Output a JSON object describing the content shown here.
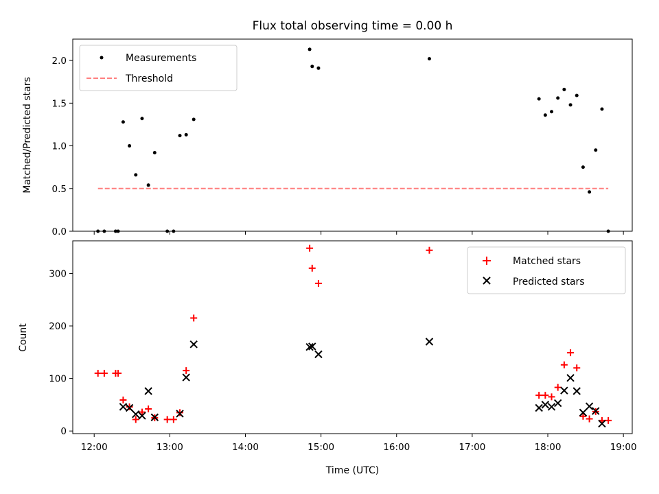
{
  "chart_data": [
    {
      "type": "scatter",
      "title": "Flux total observing time = 0.00 h",
      "xlabel": "",
      "ylabel": "Matched/Predicted stars",
      "ylim": [
        0,
        2.25
      ],
      "yticks": [
        "0.0",
        "0.5",
        "1.0",
        "1.5",
        "2.0"
      ],
      "ytick_values": [
        0,
        0.5,
        1.0,
        1.5,
        2.0
      ],
      "xlim": [
        "11:43",
        "19:07"
      ],
      "xticks": [
        "12:00",
        "13:00",
        "14:00",
        "15:00",
        "16:00",
        "17:00",
        "18:00",
        "19:00"
      ],
      "show_xtick_labels": false,
      "legend": {
        "placement": "upper left",
        "entries": [
          "Measurements",
          "Threshold"
        ]
      },
      "series": [
        {
          "name": "Measurements",
          "marker": "dot",
          "color": "#000000",
          "x": [
            "12:03",
            "12:08",
            "12:17",
            "12:19",
            "12:23",
            "12:28",
            "12:33",
            "12:38",
            "12:43",
            "12:48",
            "12:58",
            "13:03",
            "13:08",
            "13:13",
            "13:19",
            "14:51",
            "14:53",
            "14:58",
            "16:26",
            "17:53",
            "17:58",
            "18:03",
            "18:08",
            "18:13",
            "18:18",
            "18:23",
            "18:28",
            "18:33",
            "18:38",
            "18:43",
            "18:48"
          ],
          "y": [
            0.0,
            0.0,
            0.0,
            0.0,
            1.28,
            1.0,
            0.66,
            1.32,
            0.54,
            0.92,
            0.0,
            0.0,
            1.12,
            1.13,
            1.31,
            2.13,
            1.93,
            1.91,
            2.02,
            1.55,
            1.36,
            1.4,
            1.56,
            1.66,
            1.48,
            1.59,
            0.75,
            0.46,
            0.95,
            1.43,
            0.0
          ]
        },
        {
          "name": "Threshold",
          "marker": "dashed-line",
          "color": "#ff7f7f",
          "x": [
            "12:03",
            "18:48"
          ],
          "y": [
            0.5,
            0.5
          ]
        }
      ]
    },
    {
      "type": "scatter",
      "title": "",
      "xlabel": "Time (UTC)",
      "ylabel": "Count",
      "ylim": [
        -5,
        362
      ],
      "yticks": [
        "0",
        "100",
        "200",
        "300"
      ],
      "ytick_values": [
        0,
        100,
        200,
        300
      ],
      "xlim": [
        "11:43",
        "19:07"
      ],
      "xticks": [
        "12:00",
        "13:00",
        "14:00",
        "15:00",
        "16:00",
        "17:00",
        "18:00",
        "19:00"
      ],
      "show_xtick_labels": true,
      "legend": {
        "placement": "upper right",
        "entries": [
          "Matched stars",
          "Predicted stars"
        ]
      },
      "series": [
        {
          "name": "Matched stars",
          "marker": "plus",
          "color": "#ff0000",
          "x": [
            "12:03",
            "12:08",
            "12:17",
            "12:19",
            "12:23",
            "12:28",
            "12:33",
            "12:38",
            "12:43",
            "12:48",
            "12:58",
            "13:03",
            "13:08",
            "13:13",
            "13:19",
            "14:51",
            "14:53",
            "14:58",
            "16:26",
            "17:53",
            "17:58",
            "18:03",
            "18:08",
            "18:13",
            "18:18",
            "18:23",
            "18:28",
            "18:33",
            "18:38",
            "18:43",
            "18:48"
          ],
          "y": [
            110,
            110,
            110,
            110,
            59,
            46,
            22,
            36,
            42,
            25,
            22,
            22,
            35,
            115,
            215,
            348,
            310,
            281,
            344,
            68,
            68,
            65,
            83,
            126,
            149,
            120,
            28,
            23,
            37,
            20,
            20
          ]
        },
        {
          "name": "Predicted stars",
          "marker": "x",
          "color": "#000000",
          "x": [
            "12:23",
            "12:28",
            "12:33",
            "12:38",
            "12:43",
            "12:48",
            "13:08",
            "13:13",
            "13:19",
            "14:51",
            "14:53",
            "14:58",
            "16:26",
            "17:53",
            "17:58",
            "18:03",
            "18:08",
            "18:13",
            "18:18",
            "18:23",
            "18:28",
            "18:33",
            "18:38",
            "18:43"
          ],
          "y": [
            46,
            44,
            32,
            29,
            76,
            26,
            33,
            102,
            165,
            160,
            161,
            146,
            170,
            44,
            50,
            46,
            53,
            77,
            101,
            76,
            35,
            47,
            38,
            14
          ]
        }
      ]
    }
  ]
}
